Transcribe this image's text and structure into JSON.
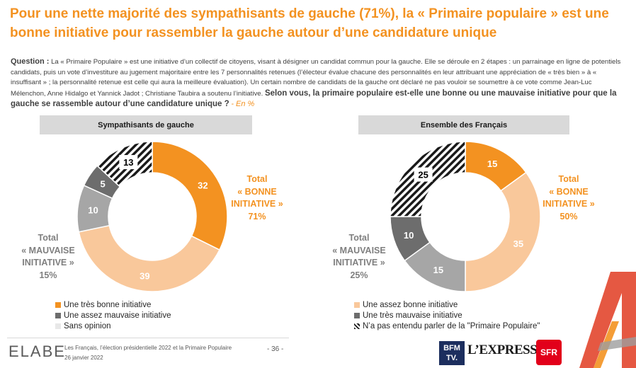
{
  "title": "Pour une nette majorité des sympathisants de gauche (71%), la « Primaire populaire » est une bonne initiative pour rassembler la gauche autour d’une candidature unique",
  "question": {
    "label": "Question :",
    "intro": "La « Primaire Populaire » est une initiative d’un collectif de citoyens, visant à désigner un candidat commun pour la gauche. Elle se déroule en 2 étapes : un parrainage en ligne de potentiels candidats, puis un vote d’investiture au jugement majoritaire entre les 7 personnalités retenues (l’électeur évalue chacune des personnalités en leur attribuant une appréciation de « très bien » à « insuffisant » ; la personnalité retenue est celle qui aura la meilleure évaluation). Un certain nombre de candidats de la gauche ont déclaré ne pas vouloir se soumettre à ce vote comme Jean-Luc Mélenchon, Anne Hidalgo et Yannick Jadot ; Christiane Taubira a soutenu l’initiative.",
    "main": "Selon vous, la primaire populaire est-elle une bonne ou une mauvaise initiative pour que la gauche se rassemble autour d’une candidature unique ?",
    "unit": "- En %"
  },
  "colors": {
    "tres_bonne": "#f39221",
    "assez_bonne": "#f9c89b",
    "assez_mauvaise": "#a6a6a6",
    "tres_mauvaise": "#6d6d6d",
    "sans_opinion": "#e8e8e8",
    "hatch": "#1a1a1a",
    "accent": "#f39221"
  },
  "chart_data": [
    {
      "type": "pie",
      "title": "Sympathisants de gauche",
      "slices": [
        {
          "label": "Une très bonne initiative",
          "value": 32,
          "color": "#f39221",
          "pattern": "solid",
          "text_color": "#ffffff"
        },
        {
          "label": "Une assez bonne initiative",
          "value": 39,
          "color": "#f9c89b",
          "pattern": "solid",
          "text_color": "#ffffff"
        },
        {
          "label": "Une assez mauvaise initiative",
          "value": 10,
          "color": "#a6a6a6",
          "pattern": "solid",
          "text_color": "#ffffff"
        },
        {
          "label": "Une très mauvaise initiative",
          "value": 5,
          "color": "#6d6d6d",
          "pattern": "solid",
          "text_color": "#ffffff"
        },
        {
          "label": "Sans opinion",
          "value": 13,
          "color": "#ffffff",
          "pattern": "hatch",
          "text_color": "#000000"
        }
      ],
      "totals": {
        "good": {
          "label": "Total « BONNE INITIATIVE »",
          "value": "71%"
        },
        "bad": {
          "label": "Total « MAUVAISE INITIATIVE »",
          "value": "15%"
        }
      }
    },
    {
      "type": "pie",
      "title": "Ensemble des Français",
      "slices": [
        {
          "label": "Une très bonne initiative",
          "value": 15,
          "color": "#f39221",
          "pattern": "solid",
          "text_color": "#ffffff"
        },
        {
          "label": "Une assez bonne initiative",
          "value": 35,
          "color": "#f9c89b",
          "pattern": "solid",
          "text_color": "#ffffff"
        },
        {
          "label": "Une assez mauvaise initiative",
          "value": 15,
          "color": "#a6a6a6",
          "pattern": "solid",
          "text_color": "#ffffff"
        },
        {
          "label": "Une très mauvaise initiative",
          "value": 10,
          "color": "#6d6d6d",
          "pattern": "solid",
          "text_color": "#ffffff"
        },
        {
          "label": "N’a pas entendu parler de la \"Primaire Populaire\"",
          "value": 25,
          "color": "#ffffff",
          "pattern": "hatch",
          "text_color": "#000000"
        }
      ],
      "totals": {
        "good": {
          "label": "Total « BONNE INITIATIVE »",
          "value": "50%"
        },
        "bad": {
          "label": "Total « MAUVAISE INITIATIVE »",
          "value": "25%"
        }
      }
    }
  ],
  "totals_text": {
    "left_good": [
      "Total",
      "« BONNE",
      "INITIATIVE »",
      "71%"
    ],
    "left_bad": [
      "Total",
      "« MAUVAISE",
      "INITIATIVE »",
      "15%"
    ],
    "right_good": [
      "Total",
      "« BONNE",
      "INITIATIVE »",
      "50%"
    ],
    "right_bad": [
      "Total",
      "« MAUVAISE",
      "INITIATIVE »",
      "25%"
    ]
  },
  "legend_left": [
    {
      "label": "Une très bonne initiative",
      "color": "#f39221",
      "pattern": "solid"
    },
    {
      "label": "Une assez mauvaise initiative",
      "color": "#6d6d6d",
      "pattern": "solid"
    },
    {
      "label": "Sans opinion",
      "color": "#e8e8e8",
      "pattern": "solid"
    }
  ],
  "legend_right": [
    {
      "label": "Une assez bonne initiative",
      "color": "#f9c89b",
      "pattern": "solid"
    },
    {
      "label": "Une très mauvaise initiative",
      "color": "#6d6d6d",
      "pattern": "solid"
    },
    {
      "label": "N’a pas entendu parler de la \"Primaire Populaire\"",
      "color": "#ffffff",
      "pattern": "hatch"
    }
  ],
  "footer": {
    "brand": "ELABE",
    "line1": "Les Français, l’élection présidentielle 2022 et la Primaire Populaire",
    "line2": "26 janvier 2022",
    "page": "- 36 -",
    "partners": {
      "bfm_line1": "BFM",
      "bfm_line2": "TV.",
      "lexpress": "L’EXPRESS",
      "sfr": "SFR"
    }
  }
}
